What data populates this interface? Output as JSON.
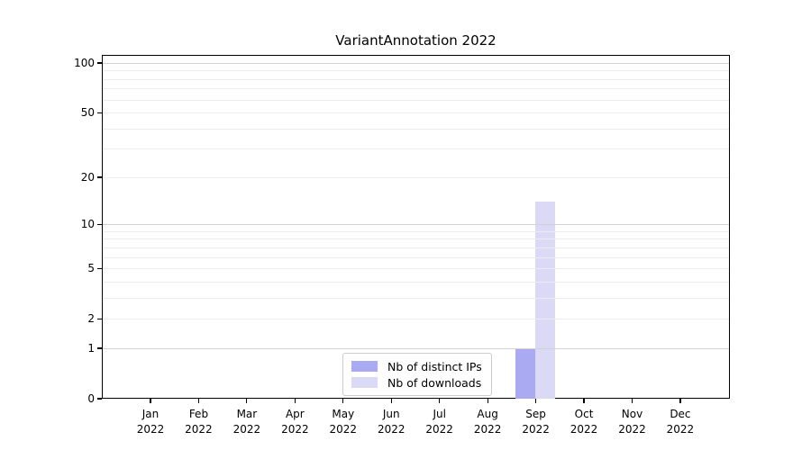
{
  "chart_data": {
    "type": "bar",
    "title": "VariantAnnotation 2022",
    "categories": [
      "Jan",
      "Feb",
      "Mar",
      "Apr",
      "May",
      "Jun",
      "Jul",
      "Aug",
      "Sep",
      "Oct",
      "Nov",
      "Dec"
    ],
    "category_year": "2022",
    "series": [
      {
        "name": "Nb of distinct IPs",
        "color": "#aaaaf2",
        "values": [
          0,
          0,
          0,
          0,
          0,
          0,
          0,
          0,
          1,
          0,
          0,
          0
        ]
      },
      {
        "name": "Nb of downloads",
        "color": "#dadaf7",
        "values": [
          0,
          0,
          0,
          0,
          0,
          0,
          0,
          0,
          14,
          0,
          0,
          0
        ]
      }
    ],
    "xlabel": "",
    "ylabel": "",
    "y_axis": {
      "scale": "log1p",
      "tick_values": [
        0,
        1,
        2,
        5,
        10,
        20,
        50,
        100
      ],
      "major_grid_values": [
        1,
        10,
        100
      ],
      "minor_grid_values": [
        2,
        3,
        4,
        5,
        6,
        7,
        8,
        9,
        20,
        30,
        40,
        50,
        60,
        70,
        80,
        90
      ],
      "ylim": [
        0,
        112
      ],
      "grid": "on",
      "grid_over_bars": true
    },
    "legend": {
      "position": "bottom-center-inside",
      "entries": [
        "Nb of distinct IPs",
        "Nb of downloads"
      ]
    }
  }
}
